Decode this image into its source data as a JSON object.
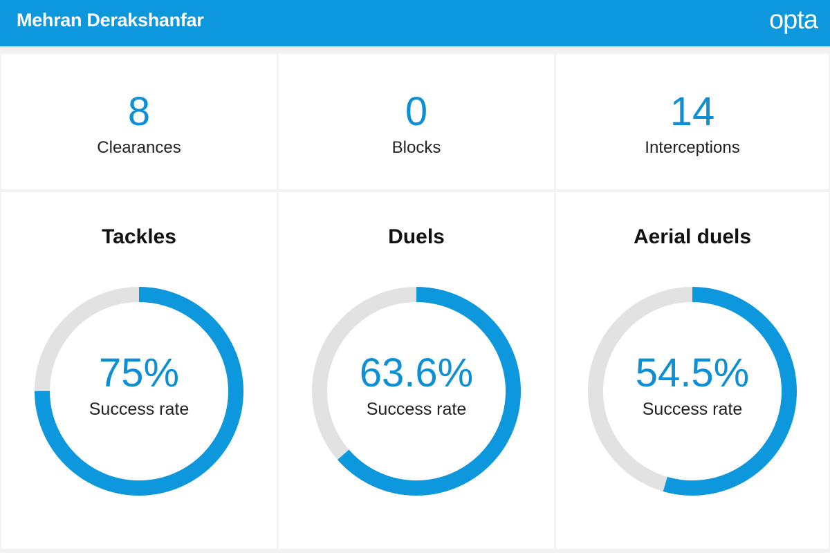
{
  "header": {
    "player": "Mehran Derakshanfar",
    "logo": "opta"
  },
  "colors": {
    "accent": "#0d97dd",
    "track": "#e2e2e2"
  },
  "chart_data": [
    {
      "type": "table",
      "stats": [
        {
          "value": "8",
          "label": "Clearances"
        },
        {
          "value": "0",
          "label": "Blocks"
        },
        {
          "value": "14",
          "label": "Interceptions"
        }
      ]
    },
    {
      "type": "pie",
      "title": "Tackles",
      "value": 75,
      "value_label": "75%",
      "caption": "Success rate"
    },
    {
      "type": "pie",
      "title": "Duels",
      "value": 63.6,
      "value_label": "63.6%",
      "caption": "Success rate"
    },
    {
      "type": "pie",
      "title": "Aerial duels",
      "value": 54.5,
      "value_label": "54.5%",
      "caption": "Success rate"
    }
  ]
}
